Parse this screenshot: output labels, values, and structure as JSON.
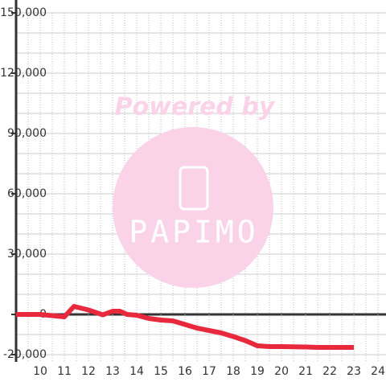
{
  "chart_data": {
    "type": "line",
    "watermark": {
      "line1": "Powered by",
      "line2": "PAPIMO"
    },
    "x": [
      9,
      10,
      10.5,
      11,
      11.4,
      12,
      12.6,
      13,
      13.3,
      13.6,
      14,
      14.5,
      15,
      15.5,
      16,
      16.5,
      17,
      17.5,
      18,
      18.5,
      19,
      19.5,
      20,
      21,
      21.5,
      22,
      23
    ],
    "series": [
      {
        "color": "#e8283c",
        "values": [
          0,
          0,
          -600,
          -1200,
          4000,
          2200,
          -200,
          1600,
          1600,
          0,
          -400,
          -2000,
          -2800,
          -3200,
          -5000,
          -6800,
          -8000,
          -9200,
          -11000,
          -13000,
          -15600,
          -16000,
          -16000,
          -16200,
          -16400,
          -16400,
          -16400
        ]
      }
    ],
    "xlim": [
      9,
      24.33
    ],
    "xticks": [
      10,
      11,
      12,
      13,
      14,
      15,
      16,
      17,
      18,
      19,
      20,
      21,
      22,
      23,
      24
    ],
    "x_minor_ticks": [
      9.5,
      10.5,
      11.5,
      12.5,
      13.5,
      14.5,
      15.5,
      16.5,
      17.5,
      18.5,
      19.5,
      20.5,
      21.5,
      22.5,
      23.5
    ],
    "ylim": [
      -20000,
      150000
    ],
    "yticks": [
      {
        "value": -20000,
        "label": "-20,000"
      },
      0,
      {
        "value": 30000,
        "label": "30,000"
      },
      {
        "value": 60000,
        "label": "60,000"
      },
      {
        "value": 90000,
        "label": "90,000"
      },
      {
        "value": 120000,
        "label": "120,000"
      },
      {
        "value": 150000,
        "label": "150,000"
      }
    ],
    "y_minor_ticks": [
      -10000,
      10000,
      20000,
      40000,
      50000,
      70000,
      80000,
      100000,
      110000,
      130000,
      140000
    ],
    "grid": true
  }
}
